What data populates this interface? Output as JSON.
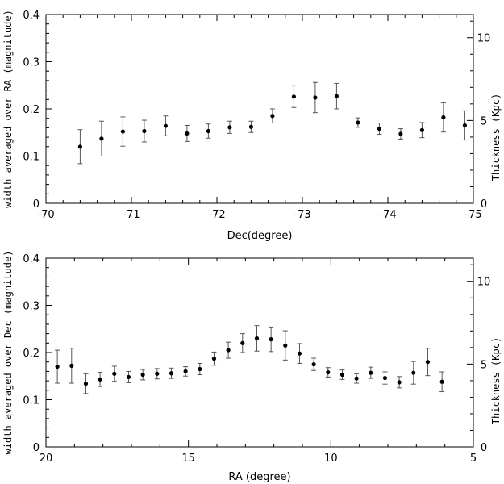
{
  "chart_data": [
    {
      "type": "scatter",
      "title": "",
      "xlabel": "Dec(degree)",
      "ylabel": "width averaged over RA (magnitude)",
      "y2label": "Thickness (Kpc)",
      "xlim": [
        -70,
        -75
      ],
      "ylim": [
        0,
        0.4
      ],
      "xticks": [
        -70,
        -71,
        -72,
        -73,
        -74,
        -75
      ],
      "xtick_labels": [
        "-70",
        "-71",
        "-72",
        "-73",
        "-74",
        "-75"
      ],
      "yticks": [
        0,
        0.1,
        0.2,
        0.3,
        0.4
      ],
      "ytick_labels": [
        "0",
        "0.1",
        "0.2",
        "0.3",
        "0.4"
      ],
      "y2ticks": [
        0,
        5,
        10
      ],
      "y2tick_labels": [
        "0",
        "5",
        "10"
      ],
      "y2_per_y": 28.5,
      "grid": false,
      "series": [
        {
          "x": [
            -70.4,
            -70.65,
            -70.9,
            -71.15,
            -71.4,
            -71.65,
            -71.9,
            -72.15,
            -72.4,
            -72.65,
            -72.9,
            -73.15,
            -73.4,
            -73.65,
            -73.9,
            -74.15,
            -74.4,
            -74.65,
            -74.9
          ],
          "y": [
            0.12,
            0.137,
            0.152,
            0.153,
            0.164,
            0.148,
            0.153,
            0.161,
            0.162,
            0.185,
            0.226,
            0.224,
            0.227,
            0.171,
            0.158,
            0.147,
            0.155,
            0.182,
            0.165
          ],
          "yerr": [
            0.036,
            0.037,
            0.031,
            0.023,
            0.021,
            0.017,
            0.015,
            0.013,
            0.012,
            0.015,
            0.023,
            0.032,
            0.027,
            0.01,
            0.012,
            0.011,
            0.016,
            0.031,
            0.031
          ]
        }
      ]
    },
    {
      "type": "scatter",
      "title": "",
      "xlabel": "RA (degree)",
      "ylabel": "width averaged over Dec (magnitude)",
      "y2label": "Thickness (Kpc)",
      "xlim": [
        20,
        5
      ],
      "ylim": [
        0,
        0.4
      ],
      "xticks": [
        20,
        15,
        10,
        5
      ],
      "xtick_labels": [
        "20",
        "15",
        "10",
        "5"
      ],
      "yticks": [
        0,
        0.1,
        0.2,
        0.3,
        0.4
      ],
      "ytick_labels": [
        "0",
        "0.1",
        "0.2",
        "0.3",
        "0.4"
      ],
      "y2ticks": [
        0,
        5,
        10
      ],
      "y2tick_labels": [
        "0",
        "5",
        "10"
      ],
      "y2_per_y": 28.5,
      "grid": false,
      "series": [
        {
          "x": [
            19.6,
            19.1,
            18.6,
            18.1,
            17.6,
            17.1,
            16.6,
            16.1,
            15.6,
            15.1,
            14.6,
            14.1,
            13.6,
            13.1,
            12.6,
            12.1,
            11.6,
            11.1,
            10.6,
            10.1,
            9.6,
            9.1,
            8.6,
            8.1,
            7.6,
            7.1,
            6.6,
            6.1
          ],
          "y": [
            0.17,
            0.172,
            0.134,
            0.143,
            0.155,
            0.148,
            0.153,
            0.155,
            0.156,
            0.16,
            0.165,
            0.187,
            0.205,
            0.22,
            0.23,
            0.228,
            0.215,
            0.198,
            0.175,
            0.158,
            0.153,
            0.145,
            0.157,
            0.146,
            0.137,
            0.157,
            0.18,
            0.138
          ],
          "yerr": [
            0.035,
            0.037,
            0.021,
            0.015,
            0.016,
            0.012,
            0.011,
            0.011,
            0.011,
            0.01,
            0.012,
            0.014,
            0.017,
            0.02,
            0.027,
            0.026,
            0.031,
            0.021,
            0.013,
            0.01,
            0.01,
            0.01,
            0.012,
            0.013,
            0.012,
            0.024,
            0.029,
            0.021
          ]
        }
      ]
    }
  ]
}
